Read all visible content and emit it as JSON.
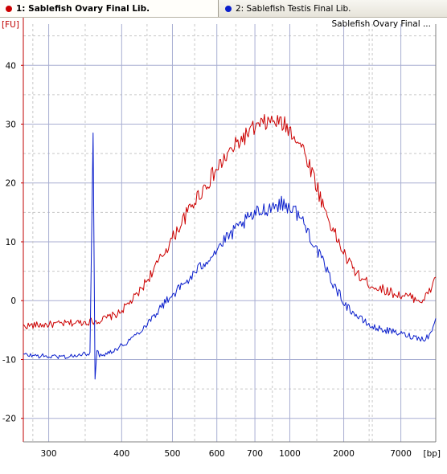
{
  "tabs": [
    {
      "label": "1: Sablefish Ovary Final Lib.",
      "color": "#cc0000",
      "active": true
    },
    {
      "label": "2: Sablefish Testis Final Lib.",
      "color": "#0a1ecc",
      "active": false
    }
  ],
  "chart_data": {
    "type": "line",
    "legend_text": "Sablefish Ovary Final ...",
    "ylabel": "[FU]",
    "xlabel": "[bp]",
    "ylim": [
      -24,
      47
    ],
    "xlim": [
      35,
      100
    ],
    "y_ticks": [
      -20,
      -10,
      0,
      10,
      20,
      30,
      40
    ],
    "x_ticks": [
      {
        "label": "300",
        "pos": 39
      },
      {
        "label": "400",
        "pos": 50.5
      },
      {
        "label": "500",
        "pos": 58.5
      },
      {
        "label": "600",
        "pos": 65.5
      },
      {
        "label": "700",
        "pos": 71.5
      },
      {
        "label": "1000",
        "pos": 77
      },
      {
        "label": "2000",
        "pos": 85.5
      },
      {
        "label": "7000",
        "pos": 94.5
      }
    ],
    "x_axis_note": "x is an arbitrary migration scale; bp tick labels placed as printed",
    "grid": true,
    "series": [
      {
        "name": "1: Sablefish Ovary Final Lib.",
        "color": "#cc0000",
        "x": [
          35,
          40,
          44,
          47,
          50,
          53,
          56,
          59,
          62,
          65,
          67,
          69,
          71,
          73,
          74.5,
          76,
          77.5,
          79,
          80.5,
          82,
          84,
          86,
          88,
          90,
          92,
          94,
          96,
          98,
          99,
          100
        ],
        "y": [
          -4.3,
          -4.0,
          -3.7,
          -3.4,
          -2.2,
          1.0,
          6.0,
          11.5,
          17.0,
          21.5,
          24.5,
          27.0,
          29.0,
          30.2,
          30.5,
          30.0,
          28.5,
          26.0,
          22.0,
          17.0,
          11.5,
          7.0,
          4.0,
          2.5,
          1.8,
          1.0,
          0.6,
          0.0,
          1.5,
          4.0
        ]
      },
      {
        "name": "2: Sablefish Testis Final Lib.",
        "color": "#0a1ecc",
        "x": [
          35,
          39,
          42,
          44,
          45.5,
          46,
          46.3,
          46.6,
          47,
          48,
          50,
          52,
          54,
          56,
          58,
          61,
          64,
          67,
          70,
          72,
          74,
          75.5,
          77,
          78.5,
          80,
          82,
          84,
          86,
          88,
          90,
          92,
          94,
          96,
          98,
          99,
          100
        ],
        "y": [
          -9.2,
          -9.5,
          -9.5,
          -9.3,
          -8.8,
          28.5,
          -13.0,
          -8.8,
          -9.2,
          -9.0,
          -8.0,
          -6.5,
          -4.5,
          -2.0,
          0.5,
          3.5,
          7.0,
          10.5,
          13.5,
          15.0,
          16.0,
          16.5,
          16.0,
          14.5,
          11.5,
          7.0,
          2.5,
          -1.0,
          -3.0,
          -4.5,
          -5.0,
          -5.5,
          -6.0,
          -6.5,
          -6.0,
          -3.0
        ]
      }
    ]
  }
}
